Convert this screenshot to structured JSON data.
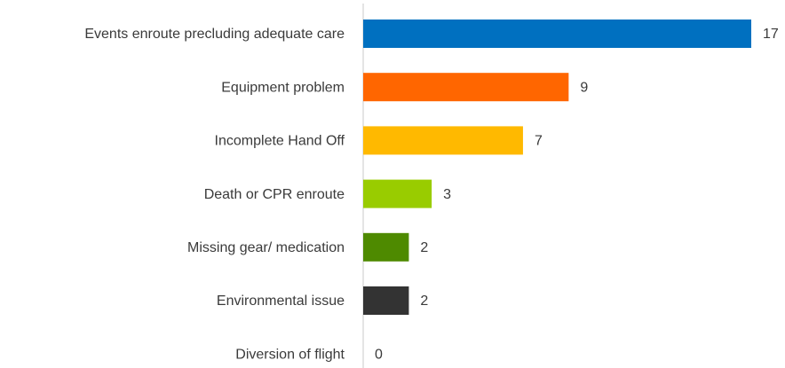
{
  "chart_data": {
    "type": "bar",
    "orientation": "horizontal",
    "categories": [
      "Events enroute precluding adequate care",
      "Equipment problem",
      "Incomplete Hand Off",
      "Death or CPR enroute",
      "Missing gear/ medication",
      "Environmental issue",
      "Diversion of flight"
    ],
    "values": [
      17,
      9,
      7,
      3,
      2,
      2,
      0
    ],
    "colors": [
      "#0070c0",
      "#ff6600",
      "#ffb900",
      "#99cc00",
      "#4e8a00",
      "#333333",
      "#999999"
    ]
  }
}
